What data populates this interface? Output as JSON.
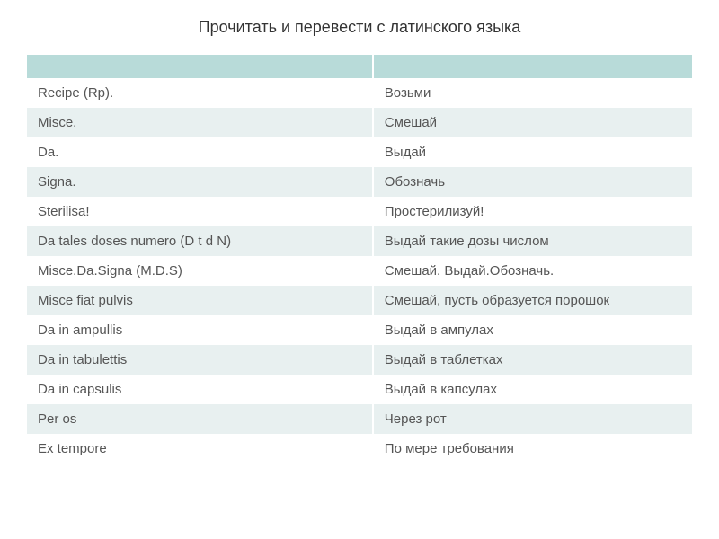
{
  "title": "Прочитать и перевести с латинского языка",
  "table": {
    "type": "table",
    "background_header": "#b8dbd9",
    "row_even_bg": "#e8f0f0",
    "row_odd_bg": "#ffffff",
    "text_color": "#555555",
    "font_size": 15,
    "column_widths": [
      "52%",
      "48%"
    ],
    "columns": [
      "",
      ""
    ],
    "rows": [
      {
        "latin": "Recipe (Rp).",
        "rus": "Возьми"
      },
      {
        "latin": "Misce.",
        "rus": "Смешай"
      },
      {
        "latin": "Da.",
        "rus": "Выдай"
      },
      {
        "latin": "Signa.",
        "rus": "Обозначь"
      },
      {
        "latin": "Sterilisa!",
        "rus": "Простерилизуй!"
      },
      {
        "latin": "Da tales doses numero (D t d N)",
        "rus": "Выдай такие дозы числом"
      },
      {
        "latin": "Misce.Da.Signa (M.D.S)",
        "rus": "Смешай. Выдай.Обозначь."
      },
      {
        "latin": "Misce fiat pulvis",
        "rus": "Смешай, пусть образуется порошок"
      },
      {
        "latin": "Da in  ampullis",
        "rus": "Выдай в ампулах"
      },
      {
        "latin": "Da in tabulettis",
        "rus": "Выдай в таблетках"
      },
      {
        "latin": "Da in capsulis",
        "rus": "Выдай в капсулах"
      },
      {
        "latin": "Per os",
        "rus": "Через рот"
      },
      {
        "latin": "Ex tempore",
        "rus": "По мере требования"
      }
    ]
  }
}
